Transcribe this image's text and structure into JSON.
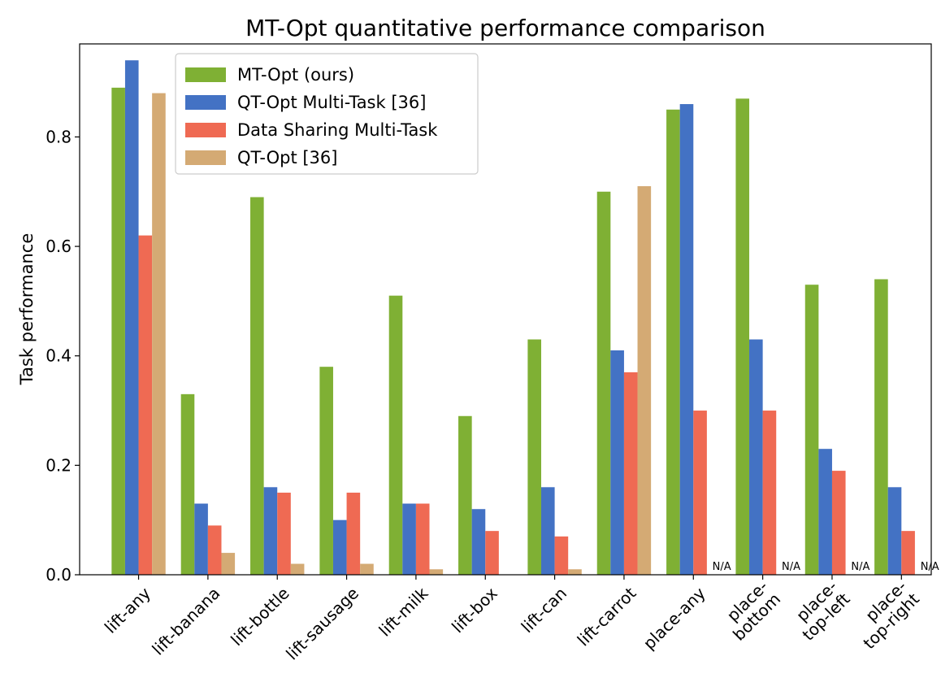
{
  "chart_data": {
    "type": "bar",
    "title": "MT-Opt quantitative performance comparison",
    "xlabel": "",
    "ylabel": "Task performance",
    "ylim": [
      0,
      0.97
    ],
    "yticks": [
      "0.0",
      "0.2",
      "0.4",
      "0.6",
      "0.8"
    ],
    "grid": false,
    "legend_position": "top-left",
    "categories": [
      [
        "lift-any"
      ],
      [
        "lift-banana"
      ],
      [
        "lift-bottle"
      ],
      [
        "lift-sausage"
      ],
      [
        "lift-milk"
      ],
      [
        "lift-box"
      ],
      [
        "lift-can"
      ],
      [
        "lift-carrot"
      ],
      [
        "place-any"
      ],
      [
        "place-",
        "bottom"
      ],
      [
        "place-",
        "top-left"
      ],
      [
        "place-",
        "top-right"
      ]
    ],
    "series": [
      {
        "name": "MT-Opt (ours)",
        "color": "#7fb034",
        "values": [
          0.89,
          0.33,
          0.69,
          0.38,
          0.51,
          0.29,
          0.43,
          0.7,
          0.85,
          0.87,
          0.53,
          0.54
        ]
      },
      {
        "name": "QT-Opt Multi-Task [36]",
        "color": "#4372c4",
        "values": [
          0.94,
          0.13,
          0.16,
          0.1,
          0.13,
          0.12,
          0.16,
          0.41,
          0.86,
          0.43,
          0.23,
          0.16
        ]
      },
      {
        "name": "Data Sharing Multi-Task",
        "color": "#ef6a53",
        "values": [
          0.62,
          0.09,
          0.15,
          0.15,
          0.13,
          0.08,
          0.07,
          0.37,
          0.3,
          0.3,
          0.19,
          0.08
        ]
      },
      {
        "name": "QT-Opt [36]",
        "color": "#d4aa74",
        "values": [
          0.88,
          0.04,
          0.02,
          0.02,
          0.01,
          0,
          0.01,
          0.71,
          null,
          null,
          null,
          null
        ]
      }
    ],
    "missing_label": "N/A"
  }
}
